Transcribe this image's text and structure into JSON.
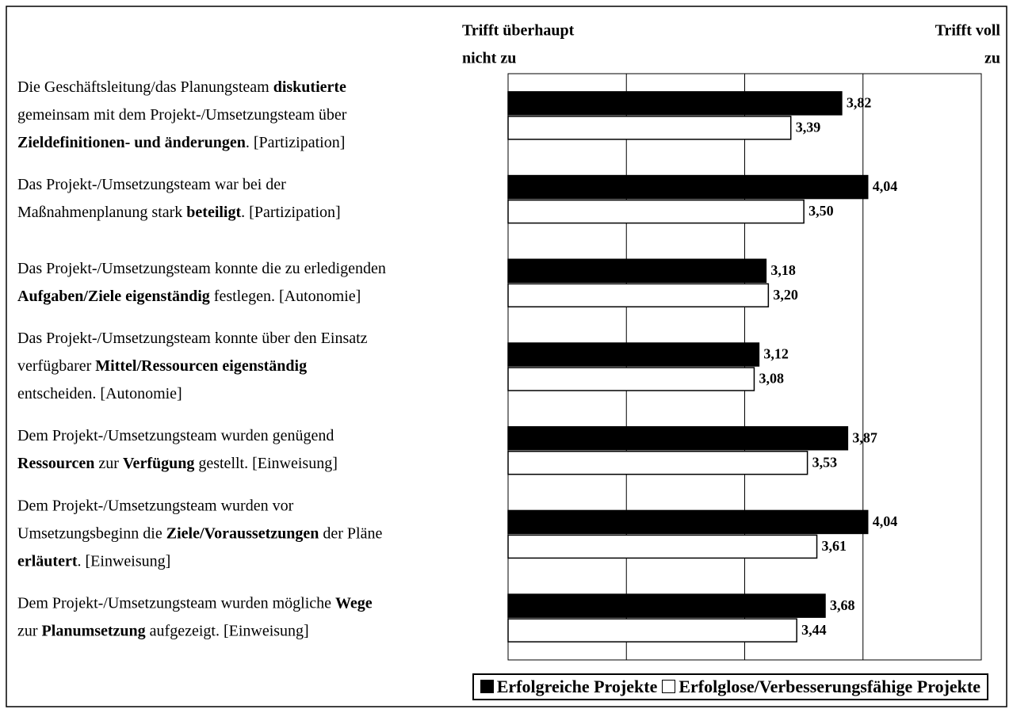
{
  "chart_data": {
    "type": "hbar",
    "scale_labels": {
      "low": [
        "Trifft überhaupt",
        "nicht zu"
      ],
      "high": [
        "Trifft voll",
        "zu"
      ]
    },
    "categories": [
      [
        [
          {
            "text": "Die Geschäftsleitung/das Planungsteam ",
            "bold": false
          },
          {
            "text": "diskutierte",
            "bold": true
          }
        ],
        [
          {
            "text": "gemeinsam mit dem Projekt-/Umsetzungsteam über",
            "bold": false
          }
        ],
        [
          {
            "text": "Zieldefinitionen- und änderungen",
            "bold": true
          },
          {
            "text": ". [Partizipation]",
            "bold": false
          }
        ]
      ],
      [
        [
          {
            "text": "Das Projekt-/Umsetzungsteam war bei der",
            "bold": false
          }
        ],
        [
          {
            "text": "Maßnahmenplanung stark ",
            "bold": false
          },
          {
            "text": "beteiligt",
            "bold": true
          },
          {
            "text": ". [Partizipation]",
            "bold": false
          }
        ]
      ],
      [
        [
          {
            "text": "Das Projekt-/Umsetzungsteam konnte die zu erledigenden",
            "bold": false
          }
        ],
        [
          {
            "text": "Aufgaben/Ziele eigenständig",
            "bold": true
          },
          {
            "text": " festlegen. [Autonomie]",
            "bold": false
          }
        ]
      ],
      [
        [
          {
            "text": "Das Projekt-/Umsetzungsteam konnte über den Einsatz",
            "bold": false
          }
        ],
        [
          {
            "text": "verfügbarer ",
            "bold": false
          },
          {
            "text": "Mittel/Ressourcen eigenständig",
            "bold": true
          }
        ],
        [
          {
            "text": "entscheiden.  [Autonomie]",
            "bold": false
          }
        ]
      ],
      [
        [
          {
            "text": "Dem Projekt-/Umsetzungsteam wurden genügend",
            "bold": false
          }
        ],
        [
          {
            "text": "Ressourcen",
            "bold": true
          },
          {
            "text": " zur ",
            "bold": false
          },
          {
            "text": "Verfügung",
            "bold": true
          },
          {
            "text": " gestellt. [Einweisung]",
            "bold": false
          }
        ]
      ],
      [
        [
          {
            "text": "Dem Projekt-/Umsetzungsteam wurden vor",
            "bold": false
          }
        ],
        [
          {
            "text": "Umsetzungsbeginn die ",
            "bold": false
          },
          {
            "text": "Ziele/Voraussetzungen",
            "bold": true
          },
          {
            "text": " der Pläne",
            "bold": false
          }
        ],
        [
          {
            "text": "erläutert",
            "bold": true
          },
          {
            "text": ".  [Einweisung]",
            "bold": false
          }
        ]
      ],
      [
        [
          {
            "text": "Dem Projekt-/Umsetzungsteam wurden mögliche ",
            "bold": false
          },
          {
            "text": "Wege",
            "bold": true
          }
        ],
        [
          {
            "text": "zur ",
            "bold": false
          },
          {
            "text": "Planumsetzung",
            "bold": true
          },
          {
            "text": " aufgezeigt.  [Einweisung]",
            "bold": false
          }
        ]
      ]
    ],
    "series": [
      {
        "name": "Erfolgreiche Projekte",
        "color": "#000000",
        "values": [
          3.82,
          4.04,
          3.18,
          3.12,
          3.87,
          4.04,
          3.68
        ],
        "value_labels": [
          "3,82",
          "4,04",
          "3,18",
          "3,12",
          "3,87",
          "4,04",
          "3,68"
        ]
      },
      {
        "name": "Erfolglose/Verbesserungsfähige Projekte",
        "color": "#ffffff",
        "values": [
          3.39,
          3.5,
          3.2,
          3.08,
          3.53,
          3.61,
          3.44
        ],
        "value_labels": [
          "3,39",
          "3,50",
          "3,20",
          "3,08",
          "3,53",
          "3,61",
          "3,44"
        ]
      }
    ],
    "xlim": [
      1,
      5
    ],
    "xticks": [
      1,
      2,
      3,
      4,
      5
    ],
    "grid": true
  }
}
